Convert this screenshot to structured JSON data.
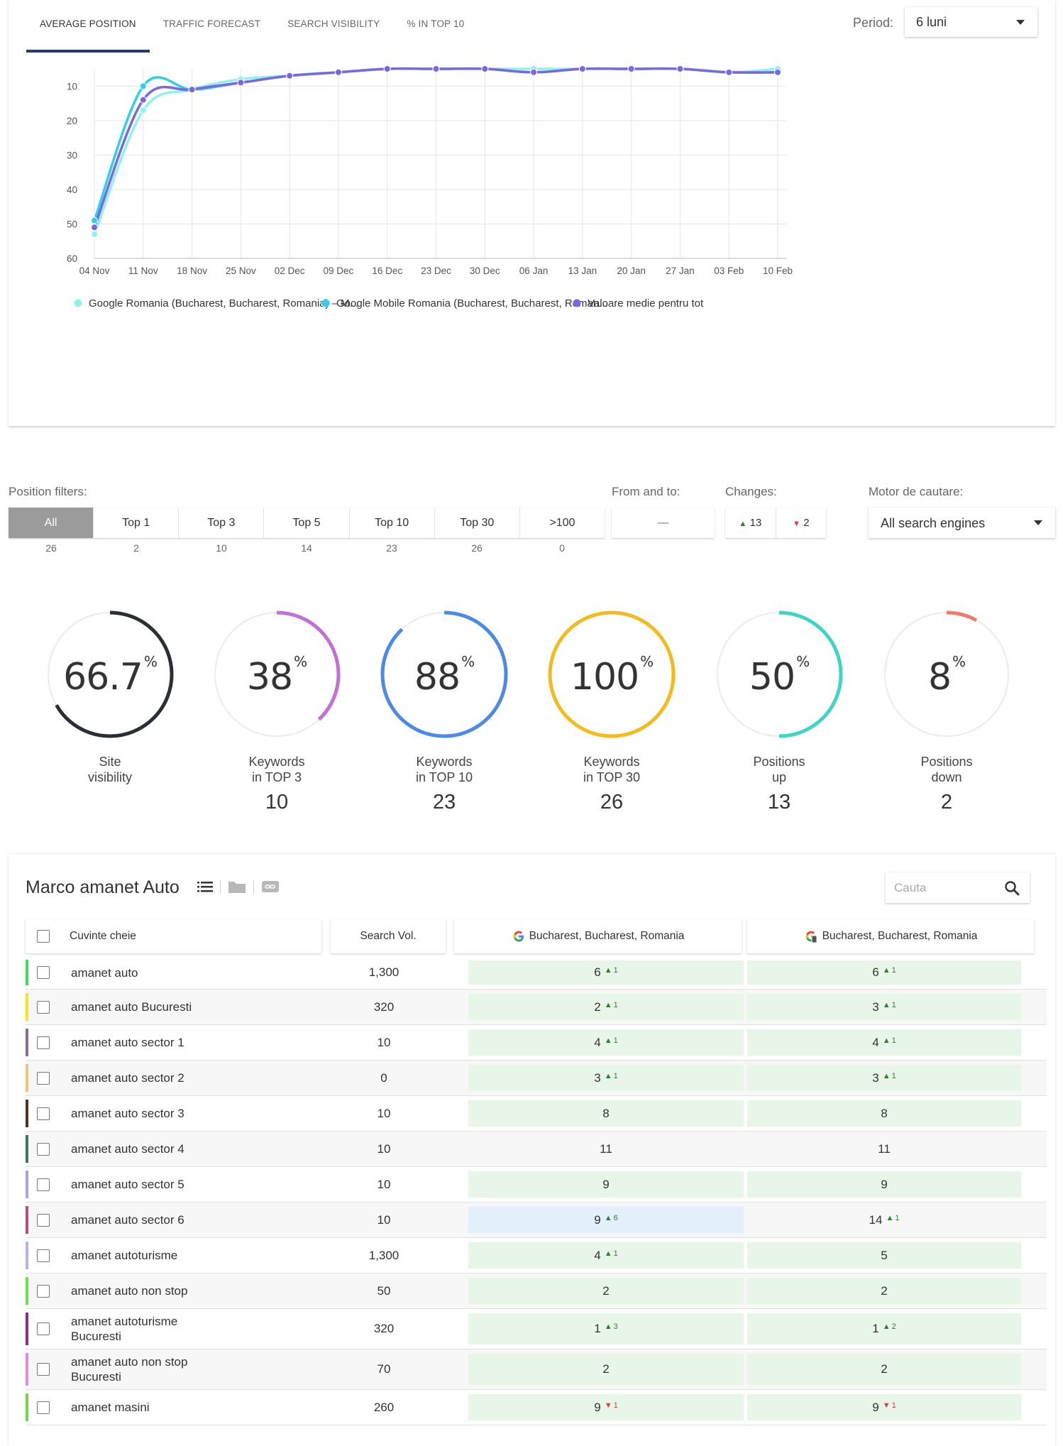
{
  "tabs": [
    {
      "label": "Average position",
      "active": true
    },
    {
      "label": "Traffic forecast",
      "active": false
    },
    {
      "label": "Search visibility",
      "active": false
    },
    {
      "label": "% in TOP 10",
      "active": false
    }
  ],
  "period": {
    "label": "Period:",
    "value": "6 luni"
  },
  "chart_data": {
    "type": "line",
    "x": [
      "04 Nov",
      "11 Nov",
      "18 Nov",
      "25 Nov",
      "02 Dec",
      "09 Dec",
      "16 Dec",
      "23 Dec",
      "30 Dec",
      "06 Jan",
      "13 Jan",
      "20 Jan",
      "27 Jan",
      "03 Feb",
      "10 Feb"
    ],
    "y_ticks": [
      10,
      20,
      30,
      40,
      50,
      60
    ],
    "ylim": [
      60,
      5
    ],
    "y_inverted": true,
    "grid": true,
    "legend_position": "bottom",
    "series": [
      {
        "name": "Google Romania (Bucharest, Bucharest, Romania) – M...",
        "color": "#8ef3ea",
        "values": [
          53,
          17,
          11,
          8,
          7,
          6,
          5,
          5,
          5,
          5,
          5,
          5,
          5,
          6,
          5
        ]
      },
      {
        "name": "Google Mobile Romania (Bucharest, Bucharest, Roman...",
        "color": "#2ed0ea",
        "values": [
          49,
          10,
          11,
          9,
          7,
          6,
          5,
          5,
          5,
          6,
          5,
          5,
          5,
          6,
          6
        ]
      },
      {
        "name": "Valoare medie pentru tot",
        "color": "#7b67e0",
        "values": [
          51,
          14,
          11,
          9,
          7,
          6,
          5,
          5,
          5,
          6,
          5,
          5,
          5,
          6,
          6
        ]
      }
    ]
  },
  "filters": {
    "position_label": "Position filters:",
    "buttons": [
      {
        "label": "All",
        "count": "26",
        "active": true
      },
      {
        "label": "Top 1",
        "count": "2"
      },
      {
        "label": "Top 3",
        "count": "10"
      },
      {
        "label": "Top 5",
        "count": "14"
      },
      {
        "label": "Top 10",
        "count": "23"
      },
      {
        "label": "Top 30",
        "count": "26"
      },
      {
        "label": ">100",
        "count": "0"
      }
    ],
    "range_label": "From and to:",
    "range_placeholder": "—",
    "changes_label": "Changes:",
    "changes_up": "13",
    "changes_down": "2",
    "engine_label": "Motor de cautare:",
    "engine_value": "All search engines"
  },
  "stats": [
    {
      "pct": "66.7",
      "fraction": 0.667,
      "color": "#2a2f36",
      "label1": "Site",
      "label2": "visibility",
      "value": ""
    },
    {
      "pct": "38",
      "fraction": 0.38,
      "color": "#c36fd6",
      "label1": "Keywords",
      "label2": "in TOP 3",
      "value": "10"
    },
    {
      "pct": "88",
      "fraction": 0.88,
      "color": "#4c89e8",
      "label1": "Keywords",
      "label2": "in TOP 10",
      "value": "23"
    },
    {
      "pct": "100",
      "fraction": 1.0,
      "color": "#f5bb1e",
      "label1": "Keywords",
      "label2": "in TOP 30",
      "value": "26"
    },
    {
      "pct": "50",
      "fraction": 0.5,
      "color": "#3dd6c6",
      "label1": "Positions",
      "label2": "up",
      "value": "13"
    },
    {
      "pct": "8",
      "fraction": 0.08,
      "color": "#f07a6b",
      "label1": "Positions",
      "label2": "down",
      "value": "2"
    }
  ],
  "pct_sign": "%",
  "project": {
    "title": "Marco amanet Auto",
    "search_placeholder": "Cauta"
  },
  "table": {
    "headers": {
      "keyword": "Cuvinte cheie",
      "volume": "Search Vol.",
      "google": "Bucharest, Bucharest, Romania",
      "mobile": "Bucharest, Bucharest, Romania"
    },
    "rows": [
      {
        "color": "#3ddc5a",
        "kw": "amanet auto",
        "vol": "1,300",
        "g": "6",
        "gc": "1",
        "gd": "up",
        "gbg": "green",
        "m": "6",
        "mc": "1",
        "md": "up",
        "mbg": "green"
      },
      {
        "color": "#f2e61c",
        "kw": "amanet auto Bucuresti",
        "vol": "320",
        "g": "2",
        "gc": "1",
        "gd": "up",
        "gbg": "green",
        "m": "3",
        "mc": "1",
        "md": "up",
        "mbg": "green"
      },
      {
        "color": "#8b6f93",
        "kw": "amanet auto sector 1",
        "vol": "10",
        "g": "4",
        "gc": "1",
        "gd": "up",
        "gbg": "green",
        "m": "4",
        "mc": "1",
        "md": "up",
        "mbg": "green"
      },
      {
        "color": "#f0c27a",
        "kw": "amanet auto sector 2",
        "vol": "0",
        "g": "3",
        "gc": "1",
        "gd": "up",
        "gbg": "green",
        "m": "3",
        "mc": "1",
        "md": "up",
        "mbg": "green"
      },
      {
        "color": "#4a3426",
        "kw": "amanet auto sector 3",
        "vol": "10",
        "g": "8",
        "gc": "",
        "gd": "",
        "gbg": "green",
        "m": "8",
        "mc": "",
        "md": "",
        "mbg": "green"
      },
      {
        "color": "#3d7a5a",
        "kw": "amanet auto sector 4",
        "vol": "10",
        "g": "11",
        "gc": "",
        "gd": "",
        "gbg": "",
        "m": "11",
        "mc": "",
        "md": "",
        "mbg": ""
      },
      {
        "color": "#a9a3e6",
        "kw": "amanet auto sector 5",
        "vol": "10",
        "g": "9",
        "gc": "",
        "gd": "",
        "gbg": "green",
        "m": "9",
        "mc": "",
        "md": "",
        "mbg": "green"
      },
      {
        "color": "#b84a7c",
        "kw": "amanet auto sector 6",
        "vol": "10",
        "g": "9",
        "gc": "6",
        "gd": "up",
        "gbg": "blue",
        "m": "14",
        "mc": "1",
        "md": "up",
        "mbg": ""
      },
      {
        "color": "#b3b3ee",
        "kw": "amanet autoturisme",
        "vol": "1,300",
        "g": "4",
        "gc": "1",
        "gd": "up",
        "gbg": "green",
        "m": "5",
        "mc": "",
        "md": "",
        "mbg": "green"
      },
      {
        "color": "#66e24a",
        "kw": "amanet auto non stop",
        "vol": "50",
        "g": "2",
        "gc": "",
        "gd": "",
        "gbg": "green",
        "m": "2",
        "mc": "",
        "md": "",
        "mbg": "green"
      },
      {
        "color": "#8e2a8e",
        "kw": "amanet autoturisme Bucuresti",
        "vol": "320",
        "g": "1",
        "gc": "3",
        "gd": "up",
        "gbg": "green",
        "m": "1",
        "mc": "2",
        "md": "up",
        "mbg": "green"
      },
      {
        "color": "#e68ae6",
        "kw": "amanet auto non stop Bucuresti",
        "vol": "70",
        "g": "2",
        "gc": "",
        "gd": "",
        "gbg": "green",
        "m": "2",
        "mc": "",
        "md": "",
        "mbg": "green"
      },
      {
        "color": "#72d842",
        "kw": "amanet masini",
        "vol": "260",
        "g": "9",
        "gc": "1",
        "gd": "down",
        "gbg": "green",
        "m": "9",
        "mc": "1",
        "md": "down",
        "mbg": "green"
      }
    ]
  }
}
